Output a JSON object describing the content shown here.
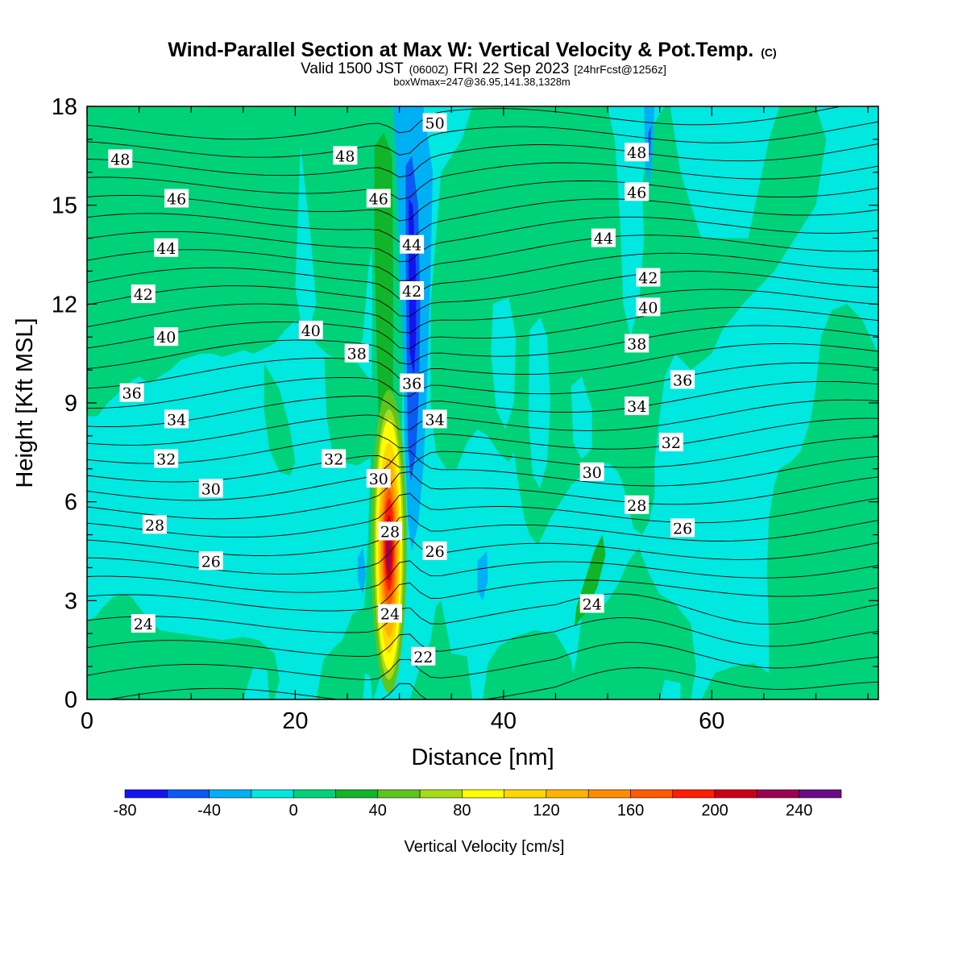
{
  "title": {
    "main": "Wind-Parallel Section at Max W: Vertical Velocity & Pot.Temp.",
    "copyright": "(C)",
    "valid_prefix": "Valid 1500 JST",
    "valid_utc": "(0600Z)",
    "valid_date": "FRI 22 Sep 2023",
    "forecast": "[24hrFcst@1256z]",
    "boxinfo": "boxWmax=247@36.95,141.38,1328m"
  },
  "chart_data": {
    "type": "heatmap",
    "description_kind": "filled contour of vertical velocity with potential temperature isolines",
    "xlabel": "Distance [nm]",
    "ylabel": "Height [Kft MSL]",
    "xlim": [
      0,
      76
    ],
    "ylim": [
      0,
      18
    ],
    "x_ticks": [
      0,
      20,
      40,
      60
    ],
    "x_minor_step": 5,
    "y_ticks": [
      0,
      3,
      6,
      9,
      12,
      15,
      18
    ],
    "y_minor_step": 1,
    "colorbar": {
      "label": "Vertical Velocity [cm/s]",
      "bounds": [
        -80,
        -60,
        -40,
        -20,
        0,
        20,
        40,
        60,
        80,
        100,
        120,
        140,
        160,
        180,
        200,
        220,
        240,
        260
      ],
      "tick_values": [
        -80,
        -40,
        0,
        40,
        80,
        120,
        160,
        200,
        240
      ],
      "colors": [
        "#1414f0",
        "#0a5af5",
        "#00b0f5",
        "#00e8e0",
        "#00d27a",
        "#12b52a",
        "#5ec41e",
        "#a6dc16",
        "#ffff00",
        "#ffd700",
        "#ffb400",
        "#ff8c00",
        "#ff5a00",
        "#ff1e00",
        "#cc0018",
        "#9c0050",
        "#6a0a88"
      ]
    },
    "theta_contours": {
      "step": 1,
      "labeled_values": [
        22,
        24,
        26,
        28,
        30,
        32,
        34,
        36,
        38,
        40,
        42,
        44,
        46,
        48,
        50
      ],
      "labels": [
        {
          "text": "48",
          "x": 3.2,
          "y": 16.4
        },
        {
          "text": "46",
          "x": 8.6,
          "y": 15.2
        },
        {
          "text": "44",
          "x": 7.6,
          "y": 13.7
        },
        {
          "text": "42",
          "x": 5.4,
          "y": 12.3
        },
        {
          "text": "40",
          "x": 7.6,
          "y": 11.0
        },
        {
          "text": "36",
          "x": 4.3,
          "y": 9.3
        },
        {
          "text": "34",
          "x": 8.6,
          "y": 8.5
        },
        {
          "text": "32",
          "x": 7.6,
          "y": 7.3
        },
        {
          "text": "30",
          "x": 11.9,
          "y": 6.4
        },
        {
          "text": "28",
          "x": 6.5,
          "y": 5.3
        },
        {
          "text": "26",
          "x": 11.9,
          "y": 4.2
        },
        {
          "text": "24",
          "x": 5.4,
          "y": 2.3
        },
        {
          "text": "48",
          "x": 24.8,
          "y": 16.5
        },
        {
          "text": "46",
          "x": 28.0,
          "y": 15.2
        },
        {
          "text": "40",
          "x": 21.5,
          "y": 11.2
        },
        {
          "text": "38",
          "x": 25.9,
          "y": 10.5
        },
        {
          "text": "32",
          "x": 23.7,
          "y": 7.3
        },
        {
          "text": "30",
          "x": 28.0,
          "y": 6.7
        },
        {
          "text": "28",
          "x": 29.1,
          "y": 5.1
        },
        {
          "text": "24",
          "x": 29.1,
          "y": 2.6
        },
        {
          "text": "50",
          "x": 33.4,
          "y": 17.5
        },
        {
          "text": "44",
          "x": 31.2,
          "y": 13.8
        },
        {
          "text": "42",
          "x": 31.2,
          "y": 12.4
        },
        {
          "text": "36",
          "x": 31.2,
          "y": 9.6
        },
        {
          "text": "34",
          "x": 33.4,
          "y": 8.5
        },
        {
          "text": "26",
          "x": 33.4,
          "y": 4.5
        },
        {
          "text": "22",
          "x": 32.3,
          "y": 1.3
        },
        {
          "text": "44",
          "x": 49.6,
          "y": 14.0
        },
        {
          "text": "30",
          "x": 48.5,
          "y": 6.9
        },
        {
          "text": "24",
          "x": 48.5,
          "y": 2.9
        },
        {
          "text": "48",
          "x": 52.8,
          "y": 16.6
        },
        {
          "text": "46",
          "x": 52.8,
          "y": 15.4
        },
        {
          "text": "42",
          "x": 53.9,
          "y": 12.8
        },
        {
          "text": "40",
          "x": 53.9,
          "y": 11.9
        },
        {
          "text": "38",
          "x": 52.8,
          "y": 10.8
        },
        {
          "text": "34",
          "x": 52.8,
          "y": 8.9
        },
        {
          "text": "28",
          "x": 52.8,
          "y": 5.9
        },
        {
          "text": "36",
          "x": 57.2,
          "y": 9.7
        },
        {
          "text": "32",
          "x": 56.1,
          "y": 7.8
        },
        {
          "text": "26",
          "x": 57.2,
          "y": 5.2
        }
      ]
    }
  }
}
